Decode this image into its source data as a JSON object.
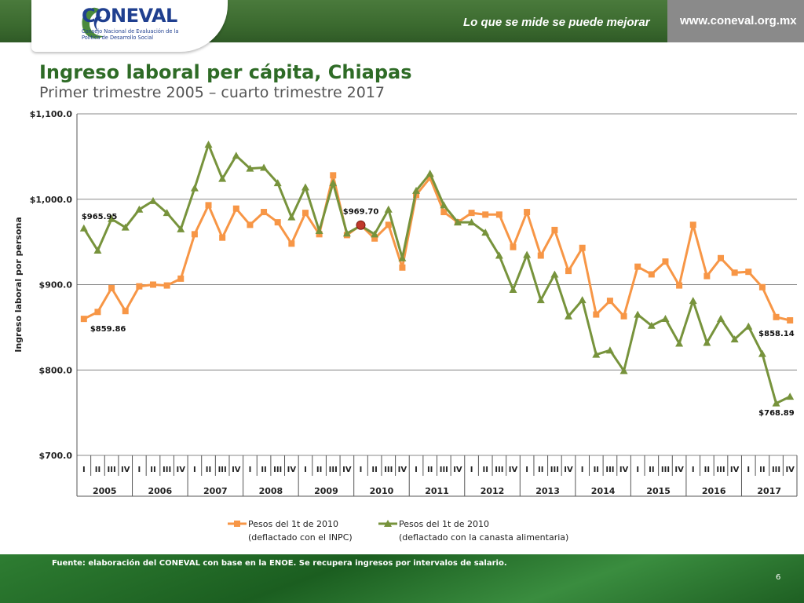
{
  "header": {
    "logo_text": "CONEVAL",
    "logo_subtitle": "Consejo Nacional de Evaluación de la Política de Desarrollo Social",
    "tagline": "Lo que se mide se puede mejorar",
    "url": "www.coneval.org.mx"
  },
  "slide": {
    "title": "Ingreso laboral per cápita, Chiapas",
    "subtitle": "Primer trimestre 2005 – cuarto trimestre 2017"
  },
  "footer": {
    "source": "Fuente: elaboración del CONEVAL con base en la ENOE. Se recupera ingresos por intervalos de salario.",
    "page_number": "6"
  },
  "colors": {
    "series_inpc": "#f79646",
    "series_canasta": "#77933c",
    "highlight_point": "#c0392b",
    "grid": "#888888"
  },
  "chart_data": {
    "type": "line",
    "ylabel": "Ingreso laboral por persona",
    "ylim": [
      700,
      1100
    ],
    "yticks": [
      700,
      800,
      900,
      1000,
      1100
    ],
    "ytick_labels": [
      "$700.0",
      "$800.0",
      "$900.0",
      "$1,000.0",
      "$1,100.0"
    ],
    "years": [
      "2005",
      "2006",
      "2007",
      "2008",
      "2009",
      "2010",
      "2011",
      "2012",
      "2013",
      "2014",
      "2015",
      "2016",
      "2017"
    ],
    "quarters": [
      "I",
      "II",
      "III",
      "IV"
    ],
    "grid": true,
    "legend_position": "bottom",
    "series": [
      {
        "name": "Pesos del 1t de 2010",
        "name_line2": "(deflactado con el INPC)",
        "marker": "square",
        "values": [
          859.86,
          868,
          896,
          869,
          898,
          900,
          899,
          907,
          959,
          993,
          955,
          989,
          970,
          985,
          973,
          948,
          984,
          959,
          1028,
          958,
          969.7,
          954,
          970,
          920,
          1005,
          1025,
          985,
          973,
          984,
          982,
          982,
          944,
          985,
          934,
          964,
          916,
          943,
          865,
          881,
          863,
          921,
          912,
          927,
          899,
          970,
          910,
          931,
          914,
          915,
          897,
          862,
          858.14
        ]
      },
      {
        "name": "Pesos del 1t de 2010",
        "name_line2": "(deflactado con la canasta alimentaria)",
        "marker": "triangle",
        "values": [
          965.95,
          940,
          977,
          967,
          988,
          998,
          984,
          965,
          1013,
          1064,
          1024,
          1051,
          1036,
          1037,
          1019,
          979,
          1014,
          963,
          1019,
          960,
          969,
          959,
          988,
          931,
          1010,
          1030,
          993,
          973,
          973,
          961,
          934,
          894,
          935,
          882,
          912,
          863,
          882,
          818,
          823,
          799,
          865,
          852,
          860,
          831,
          881,
          832,
          860,
          836,
          851,
          819,
          761,
          768.89
        ]
      }
    ],
    "annotations": [
      {
        "text": "$965.95",
        "series": 1,
        "index": 0
      },
      {
        "text": "$859.86",
        "series": 0,
        "index": 0
      },
      {
        "text": "$969.70",
        "series": 0,
        "index": 20
      },
      {
        "text": "$858.14",
        "series": 0,
        "index": 51
      },
      {
        "text": "$768.89",
        "series": 1,
        "index": 51
      }
    ]
  }
}
